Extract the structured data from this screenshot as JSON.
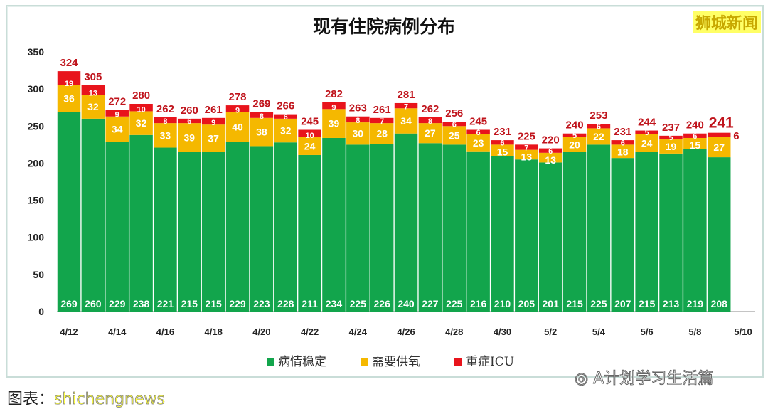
{
  "watermark_top": "狮城新闻",
  "watermark_wechat": "A计划学习生活篇",
  "caption_prefix": "图表：",
  "caption_watermark": "shichengnews",
  "chart_data": {
    "type": "bar",
    "stacked": true,
    "title": "现有住院病例分布",
    "xlabel": "",
    "ylabel": "",
    "ylim": [
      0,
      350
    ],
    "yticks": [
      0,
      50,
      100,
      150,
      200,
      250,
      300,
      350
    ],
    "grid": false,
    "legend_position": "bottom",
    "categories": [
      "4/12",
      "4/13",
      "4/14",
      "4/15",
      "4/16",
      "4/17",
      "4/18",
      "4/19",
      "4/20",
      "4/21",
      "4/22",
      "4/23",
      "4/24",
      "4/25",
      "4/26",
      "4/27",
      "4/28",
      "4/29",
      "4/30",
      "5/1",
      "5/2",
      "5/3",
      "5/4",
      "5/5",
      "5/6",
      "5/7",
      "5/8",
      "5/9",
      "5/10"
    ],
    "xtick_labels": [
      "4/12",
      "4/14",
      "4/16",
      "4/18",
      "4/20",
      "4/22",
      "4/24",
      "4/26",
      "4/28",
      "4/30",
      "5/2",
      "5/4",
      "5/6",
      "5/8",
      "5/10"
    ],
    "series": [
      {
        "name": "病情稳定",
        "color": "#12a54c",
        "values": [
          269,
          260,
          229,
          238,
          221,
          215,
          215,
          229,
          223,
          228,
          211,
          234,
          225,
          226,
          240,
          227,
          225,
          216,
          210,
          205,
          201,
          215,
          225,
          207,
          215,
          213,
          219,
          208,
          null
        ]
      },
      {
        "name": "需要供氧",
        "color": "#f5b800",
        "values": [
          36,
          32,
          34,
          32,
          33,
          39,
          37,
          40,
          38,
          32,
          24,
          39,
          30,
          28,
          34,
          27,
          25,
          23,
          15,
          13,
          13,
          20,
          22,
          18,
          24,
          19,
          15,
          27,
          null
        ]
      },
      {
        "name": "重症ICU",
        "color": "#e8141c",
        "values": [
          19,
          13,
          9,
          10,
          8,
          6,
          9,
          9,
          8,
          6,
          10,
          9,
          8,
          7,
          7,
          8,
          6,
          6,
          6,
          7,
          6,
          5,
          6,
          6,
          5,
          5,
          6,
          6,
          null
        ]
      }
    ],
    "totals": [
      324,
      305,
      272,
      280,
      262,
      260,
      261,
      278,
      269,
      266,
      245,
      282,
      263,
      261,
      281,
      262,
      256,
      245,
      231,
      225,
      220,
      240,
      253,
      231,
      244,
      237,
      240,
      241,
      null
    ]
  }
}
